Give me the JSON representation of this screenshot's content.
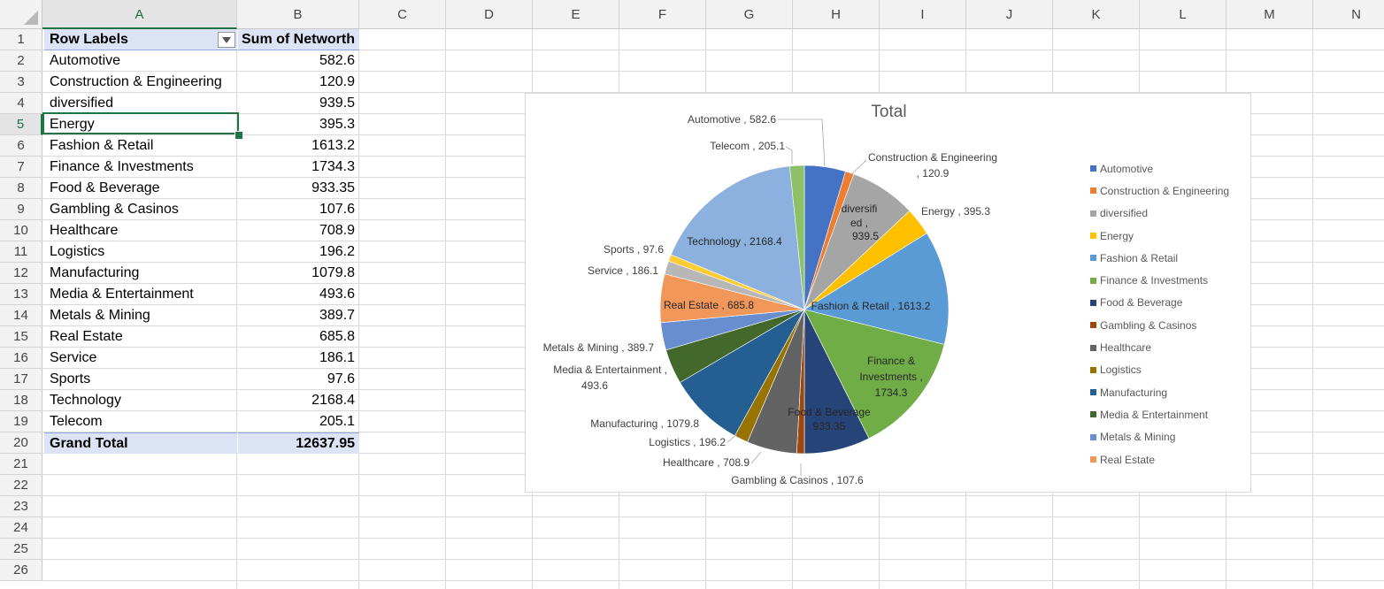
{
  "columns": [
    "A",
    "B",
    "C",
    "D",
    "E",
    "F",
    "G",
    "H",
    "I",
    "J",
    "K",
    "L",
    "M",
    "N"
  ],
  "rows": [
    "1",
    "2",
    "3",
    "4",
    "5",
    "6",
    "7",
    "8",
    "9",
    "10",
    "11",
    "12",
    "13",
    "14",
    "15",
    "16",
    "17",
    "18",
    "19",
    "20",
    "21",
    "22",
    "23",
    "24",
    "25",
    "26"
  ],
  "pivot": {
    "header_label": "Row Labels",
    "header_value": "Sum of Networth",
    "items": [
      {
        "label": "Automotive",
        "value": "582.6"
      },
      {
        "label": "Construction & Engineering",
        "value": "120.9"
      },
      {
        "label": "diversified",
        "value": "939.5"
      },
      {
        "label": "Energy",
        "value": "395.3"
      },
      {
        "label": "Fashion & Retail",
        "value": "1613.2"
      },
      {
        "label": "Finance & Investments",
        "value": "1734.3"
      },
      {
        "label": "Food & Beverage",
        "value": "933.35"
      },
      {
        "label": "Gambling & Casinos",
        "value": "107.6"
      },
      {
        "label": "Healthcare",
        "value": "708.9"
      },
      {
        "label": "Logistics",
        "value": "196.2"
      },
      {
        "label": "Manufacturing",
        "value": "1079.8"
      },
      {
        "label": "Media & Entertainment",
        "value": "493.6"
      },
      {
        "label": "Metals & Mining",
        "value": "389.7"
      },
      {
        "label": "Real Estate",
        "value": "685.8"
      },
      {
        "label": "Service",
        "value": "186.1"
      },
      {
        "label": "Sports",
        "value": "97.6"
      },
      {
        "label": "Technology",
        "value": "2168.4"
      },
      {
        "label": "Telecom",
        "value": "205.1"
      }
    ],
    "total_label": "Grand Total",
    "total_value": "12637.95"
  },
  "chart_data": {
    "type": "pie",
    "title": "Total",
    "categories": [
      "Automotive",
      "Construction & Engineering",
      "diversified",
      "Energy",
      "Fashion & Retail",
      "Finance & Investments",
      "Food & Beverage",
      "Gambling & Casinos",
      "Healthcare",
      "Logistics",
      "Manufacturing",
      "Media & Entertainment",
      "Metals & Mining",
      "Real Estate",
      "Service",
      "Sports",
      "Technology",
      "Telecom"
    ],
    "values": [
      582.6,
      120.9,
      939.5,
      395.3,
      1613.2,
      1734.3,
      933.35,
      107.6,
      708.9,
      196.2,
      1079.8,
      493.6,
      389.7,
      685.8,
      186.1,
      97.6,
      2168.4,
      205.1
    ],
    "colors": [
      "#4472C4",
      "#ED7D31",
      "#A5A5A5",
      "#FFC000",
      "#5B9BD5",
      "#70AD47",
      "#264478",
      "#9E480E",
      "#636363",
      "#997300",
      "#255E91",
      "#43682B",
      "#698ED0",
      "#F1975A",
      "#B7B7B7",
      "#FFCD33",
      "#8CB1DE",
      "#8CC168"
    ],
    "data_labels": [
      "Automotive , 582.6",
      "Construction & Engineering , 120.9",
      "diversified , 939.5",
      "Energy , 395.3",
      "Fashion & Retail , 1613.2",
      "Finance & Investments , 1734.3",
      "Food & Beverage , 933.35",
      "Gambling & Casinos , 107.6",
      "Healthcare , 708.9",
      "Logistics , 196.2",
      "Manufacturing , 1079.8",
      "Media & Entertainment , 493.6",
      "Metals & Mining , 389.7",
      "Real Estate , 685.8",
      "Service , 186.1",
      "Sports , 97.6",
      "Technology , 2168.4",
      "Telecom , 205.1"
    ],
    "legend_entries": [
      "Automotive",
      "Construction & Engineering",
      "diversified",
      "Energy",
      "Fashion & Retail",
      "Finance & Investments",
      "Food & Beverage",
      "Gambling & Casinos",
      "Healthcare",
      "Logistics",
      "Manufacturing",
      "Media & Entertainment",
      "Metals & Mining",
      "Real Estate"
    ],
    "legend_position": "right"
  }
}
